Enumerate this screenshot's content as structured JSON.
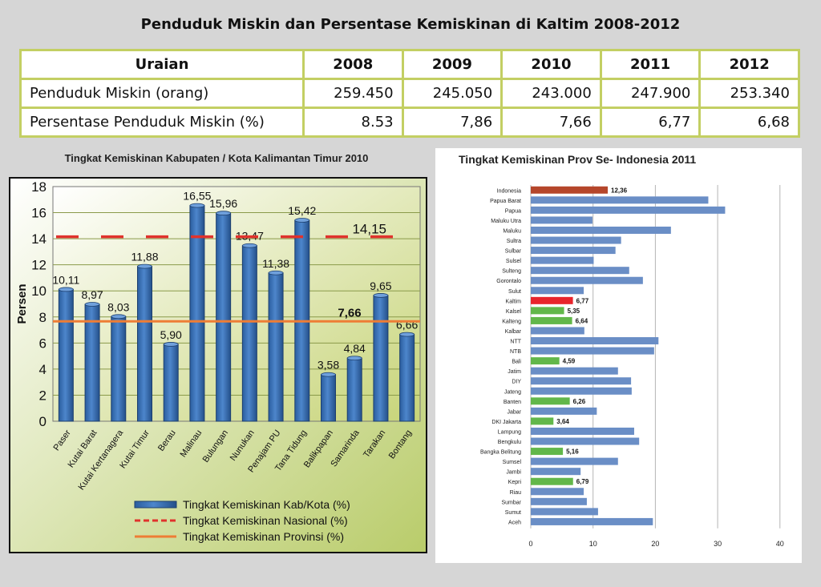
{
  "title": "Penduduk Miskin dan Persentase Kemiskinan di Kaltim 2008-2012",
  "table": {
    "header": [
      "Uraian",
      "2008",
      "2009",
      "2010",
      "2011",
      "2012"
    ],
    "rows": [
      [
        "Penduduk Miskin (orang)",
        "259.450",
        "245.050",
        "243.000",
        "247.900",
        "253.340"
      ],
      [
        "Persentase Penduduk Miskin (%)",
        "8.53",
        "7,86",
        "7,66",
        "6,77",
        "6,68"
      ]
    ]
  },
  "chart_data": [
    {
      "type": "bar",
      "title": "Tingkat Kemiskinan Kabupaten / Kota Kalimantan Timur 2010",
      "ylabel": "Persen",
      "ylim": [
        0,
        18
      ],
      "yticks": [
        "0",
        "2",
        "4",
        "6",
        "8",
        "10",
        "12",
        "14",
        "16",
        "18"
      ],
      "grid": true,
      "categories": [
        "Paser",
        "Kutai Barat",
        "Kutai Kertanagera",
        "Kutai Timur",
        "Berau",
        "Malinau",
        "Bulungan",
        "Nunukan",
        "Penajam PU",
        "Tana Tidung",
        "Balikpapan",
        "Samarinda",
        "Tarakan",
        "Bontang"
      ],
      "values": [
        10.11,
        8.97,
        8.03,
        11.88,
        5.9,
        16.55,
        15.96,
        13.47,
        11.38,
        15.42,
        3.58,
        4.84,
        9.65,
        6.66
      ],
      "data_labels": [
        "10,11",
        "8,97",
        "8,03",
        "11,88",
        "5,90",
        "16,55",
        "15,96",
        "13,47",
        "11,38",
        "15,42",
        "3,58",
        "4,84",
        "9,65",
        "6,66"
      ],
      "bar_color": "#3d72b4",
      "reference_lines": [
        {
          "name": "Tingkat Kemiskinan Nasional (%)",
          "value": 14.15,
          "label": "14,15",
          "style": "dashed",
          "color": "#e0322c"
        },
        {
          "name": "Tingkat Kemiskinan Provinsi (%)",
          "value": 7.66,
          "label": "7,66",
          "style": "solid",
          "color": "#ee7d35"
        }
      ],
      "legend": [
        "Tingkat Kemiskinan Kab/Kota (%)",
        "Tingkat Kemiskinan Nasional (%)",
        "Tingkat Kemiskinan Provinsi (%)"
      ],
      "legend_position": "bottom"
    },
    {
      "type": "bar",
      "orientation": "horizontal",
      "title": "Tingkat Kemiskinan Prov Se- Indonesia 2011",
      "xlim": [
        0,
        40
      ],
      "xticks": [
        "0",
        "10",
        "20",
        "30",
        "40"
      ],
      "grid": true,
      "categories": [
        "Indonesia",
        "Papua Barat",
        "Papua",
        "Maluku Utra",
        "Maluku",
        "Sultra",
        "Sulbar",
        "Sulsel",
        "Sulteng",
        "Gorontalo",
        "Sulut",
        "Kaltim",
        "Kalsel",
        "Kalteng",
        "Kalbar",
        "NTT",
        "NTB",
        "Bali",
        "Jatim",
        "DIY",
        "Jateng",
        "Banten",
        "Jabar",
        "DKI Jakarta",
        "Lampung",
        "Bengkulu",
        "Bangka Belitung",
        "Sumsel",
        "Jambi",
        "Kepri",
        "Riau",
        "Sumbar",
        "Sumut",
        "Aceh"
      ],
      "values": [
        12.36,
        28.5,
        31.2,
        9.9,
        22.5,
        14.5,
        13.6,
        10.1,
        15.8,
        18.0,
        8.5,
        6.77,
        5.35,
        6.64,
        8.6,
        20.5,
        19.8,
        4.59,
        14.0,
        16.1,
        16.2,
        6.26,
        10.6,
        3.64,
        16.6,
        17.4,
        5.16,
        14.0,
        8.0,
        6.79,
        8.5,
        9.0,
        10.8,
        19.6
      ],
      "data_labels": [
        "12,36",
        "",
        "",
        "",
        "",
        "",
        "",
        "",
        "",
        "",
        "",
        "6,77",
        "5,35",
        "6,64",
        "",
        "",
        "",
        "4,59",
        "",
        "",
        "",
        "6,26",
        "",
        "3,64",
        "",
        "",
        "5,16",
        "",
        "",
        "6,79",
        "",
        "",
        "",
        ""
      ],
      "colors": {
        "default": "#6a8ec6",
        "national": "#b5462b",
        "province": "#e8242b",
        "low": "#62b74a"
      },
      "bar_kind": [
        "national",
        "default",
        "default",
        "default",
        "default",
        "default",
        "default",
        "default",
        "default",
        "default",
        "default",
        "province",
        "low",
        "low",
        "default",
        "default",
        "default",
        "low",
        "default",
        "default",
        "default",
        "low",
        "default",
        "low",
        "default",
        "default",
        "low",
        "default",
        "default",
        "low",
        "default",
        "default",
        "default",
        "default"
      ]
    }
  ]
}
